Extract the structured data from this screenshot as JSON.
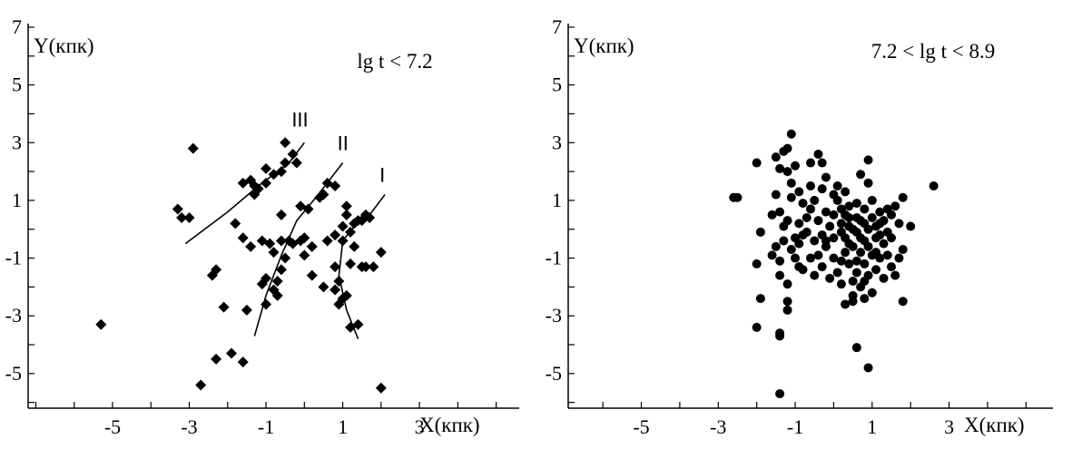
{
  "chart_data": [
    {
      "type": "scatter",
      "ylabel": "Y(кпк)",
      "xlabel": "X(кпк)",
      "annotation": "lg t < 7.2",
      "xlim": [
        -7.2,
        5.6
      ],
      "ylim": [
        -6.2,
        7
      ],
      "x_ticks": [
        "-5",
        "-3",
        "-1",
        "1",
        "3"
      ],
      "x_tick_values": [
        -5,
        -3,
        -1,
        1,
        3
      ],
      "y_ticks": [
        "7",
        "5",
        "3",
        "1",
        "-1",
        "-3",
        "-5"
      ],
      "y_tick_values": [
        7,
        5,
        3,
        1,
        -1,
        -3,
        -5
      ],
      "marker": "diamond",
      "points": [
        [
          -5.3,
          -3.3
        ],
        [
          -2.9,
          2.8
        ],
        [
          -3.3,
          0.7
        ],
        [
          -3.2,
          0.4
        ],
        [
          -3.0,
          0.4
        ],
        [
          -2.3,
          -1.4
        ],
        [
          -2.4,
          -1.6
        ],
        [
          -2.1,
          -2.7
        ],
        [
          -2.7,
          -5.4
        ],
        [
          -2.3,
          -4.5
        ],
        [
          -1.9,
          -4.3
        ],
        [
          -1.6,
          -4.6
        ],
        [
          -1.5,
          -2.8
        ],
        [
          -1.8,
          0.2
        ],
        [
          -1.6,
          -0.3
        ],
        [
          -1.4,
          -0.6
        ],
        [
          -1.6,
          1.6
        ],
        [
          -1.4,
          1.7
        ],
        [
          -1.3,
          1.5
        ],
        [
          -1.3,
          1.2
        ],
        [
          -1.2,
          1.4
        ],
        [
          -1.0,
          1.6
        ],
        [
          -1.0,
          2.1
        ],
        [
          -0.8,
          1.9
        ],
        [
          -0.6,
          2.0
        ],
        [
          -0.5,
          2.3
        ],
        [
          -0.5,
          3.0
        ],
        [
          -0.3,
          2.6
        ],
        [
          -0.2,
          2.3
        ],
        [
          -1.1,
          -0.4
        ],
        [
          -0.9,
          -0.5
        ],
        [
          -0.8,
          -0.8
        ],
        [
          -0.6,
          0.5
        ],
        [
          -0.6,
          -0.4
        ],
        [
          -0.5,
          -1.0
        ],
        [
          -0.4,
          -0.4
        ],
        [
          -0.3,
          -0.5
        ],
        [
          -0.6,
          -1.4
        ],
        [
          -0.7,
          -1.8
        ],
        [
          -0.8,
          -2.1
        ],
        [
          -0.7,
          -2.3
        ],
        [
          -1.0,
          -1.7
        ],
        [
          -1.1,
          -1.9
        ],
        [
          -1.0,
          -2.6
        ],
        [
          -0.1,
          -0.4
        ],
        [
          0.0,
          -0.3
        ],
        [
          0.0,
          -0.9
        ],
        [
          0.2,
          -0.6
        ],
        [
          -0.1,
          0.8
        ],
        [
          0.1,
          0.7
        ],
        [
          0.4,
          1.1
        ],
        [
          0.5,
          1.2
        ],
        [
          0.6,
          1.6
        ],
        [
          0.8,
          1.5
        ],
        [
          0.2,
          -1.6
        ],
        [
          0.5,
          -2.0
        ],
        [
          0.6,
          -0.4
        ],
        [
          0.8,
          -1.3
        ],
        [
          0.9,
          -1.8
        ],
        [
          0.8,
          -2.1
        ],
        [
          1.0,
          -2.4
        ],
        [
          0.9,
          -2.6
        ],
        [
          1.2,
          -1.2
        ],
        [
          1.1,
          -2.3
        ],
        [
          0.8,
          -0.2
        ],
        [
          1.0,
          0.1
        ],
        [
          1.0,
          -0.4
        ],
        [
          1.2,
          -0.1
        ],
        [
          1.3,
          0.2
        ],
        [
          1.3,
          -0.6
        ],
        [
          1.4,
          0.3
        ],
        [
          1.5,
          0.3
        ],
        [
          1.6,
          0.5
        ],
        [
          1.7,
          0.4
        ],
        [
          1.1,
          0.5
        ],
        [
          1.1,
          0.8
        ],
        [
          1.5,
          -1.3
        ],
        [
          1.6,
          -1.3
        ],
        [
          1.8,
          -1.3
        ],
        [
          1.4,
          -3.3
        ],
        [
          1.2,
          -3.4
        ],
        [
          2.0,
          -0.8
        ],
        [
          2.0,
          -5.5
        ]
      ],
      "curves": [
        {
          "label": "III",
          "points": [
            [
              -3.1,
              -0.5
            ],
            [
              -2.0,
              0.6
            ],
            [
              -1.2,
              1.5
            ],
            [
              -0.4,
              2.3
            ],
            [
              0.0,
              3.0
            ]
          ]
        },
        {
          "label": "II",
          "points": [
            [
              -1.3,
              -3.7
            ],
            [
              -1.0,
              -2.3
            ],
            [
              -0.6,
              -0.9
            ],
            [
              -0.2,
              0.3
            ],
            [
              0.3,
              1.1
            ],
            [
              1.0,
              2.3
            ]
          ]
        },
        {
          "label": "I",
          "points": [
            [
              1.4,
              -3.8
            ],
            [
              1.1,
              -2.8
            ],
            [
              0.9,
              -1.6
            ],
            [
              1.0,
              -0.4
            ],
            [
              1.3,
              0.1
            ],
            [
              1.7,
              0.5
            ],
            [
              2.1,
              1.2
            ]
          ]
        }
      ]
    },
    {
      "type": "scatter",
      "ylabel": "Y(кпк)",
      "xlabel": "X(кпк)",
      "annotation": "7.2 < lg t < 8.9",
      "xlim": [
        -6.9,
        5.7
      ],
      "ylim": [
        -6.2,
        7
      ],
      "x_ticks": [
        "-5",
        "-3",
        "-1",
        "1",
        "3"
      ],
      "x_tick_values": [
        -5,
        -3,
        -1,
        1,
        3
      ],
      "y_ticks": [
        "7",
        "5",
        "3",
        "1",
        "-1",
        "-3",
        "-5"
      ],
      "y_tick_values": [
        7,
        5,
        3,
        1,
        -1,
        -3,
        -5
      ],
      "marker": "circle",
      "points": [
        [
          -2.6,
          1.1
        ],
        [
          -2.5,
          1.1
        ],
        [
          -2.0,
          2.3
        ],
        [
          -1.9,
          -0.1
        ],
        [
          -2.0,
          -1.2
        ],
        [
          -1.9,
          -2.4
        ],
        [
          -2.0,
          -3.4
        ],
        [
          -1.4,
          -3.6
        ],
        [
          -1.4,
          -3.7
        ],
        [
          -1.4,
          -5.7
        ],
        [
          -1.2,
          -2.5
        ],
        [
          -1.2,
          -2.8
        ],
        [
          -1.1,
          3.3
        ],
        [
          -1.3,
          2.7
        ],
        [
          -1.2,
          2.8
        ],
        [
          -1.5,
          2.5
        ],
        [
          -1.4,
          2.1
        ],
        [
          -1.2,
          2.0
        ],
        [
          -1.0,
          2.2
        ],
        [
          -1.1,
          1.6
        ],
        [
          -0.9,
          1.3
        ],
        [
          -0.6,
          1.5
        ],
        [
          -0.6,
          2.3
        ],
        [
          -0.4,
          2.6
        ],
        [
          -0.3,
          2.3
        ],
        [
          -0.2,
          1.8
        ],
        [
          0.1,
          1.5
        ],
        [
          0.3,
          1.3
        ],
        [
          -1.4,
          0.6
        ],
        [
          -1.3,
          0.1
        ],
        [
          -1.2,
          0.3
        ],
        [
          -1.5,
          -0.6
        ],
        [
          -1.4,
          -1.1
        ],
        [
          -1.3,
          -0.4
        ],
        [
          -1.1,
          -0.7
        ],
        [
          -1.0,
          -1.0
        ],
        [
          -0.9,
          -0.5
        ],
        [
          -1.4,
          -1.6
        ],
        [
          -1.2,
          -1.9
        ],
        [
          -0.9,
          -1.3
        ],
        [
          -0.8,
          -0.2
        ],
        [
          -0.7,
          0.4
        ],
        [
          -0.6,
          0.7
        ],
        [
          -0.5,
          1.0
        ],
        [
          -0.4,
          0.3
        ],
        [
          -0.3,
          -0.2
        ],
        [
          -0.2,
          -0.6
        ],
        [
          -0.1,
          0.1
        ],
        [
          0.0,
          0.5
        ],
        [
          0.1,
          1.0
        ],
        [
          0.2,
          0.7
        ],
        [
          0.2,
          0.2
        ],
        [
          0.3,
          -0.3
        ],
        [
          0.4,
          0.1
        ],
        [
          0.4,
          0.4
        ],
        [
          0.5,
          -0.6
        ],
        [
          0.6,
          0.9
        ],
        [
          0.6,
          -0.1
        ],
        [
          0.7,
          0.3
        ],
        [
          0.8,
          0.7
        ],
        [
          0.8,
          -0.4
        ],
        [
          0.9,
          0.0
        ],
        [
          1.0,
          0.4
        ],
        [
          1.0,
          -0.9
        ],
        [
          1.1,
          -0.3
        ],
        [
          1.2,
          0.2
        ],
        [
          1.2,
          0.6
        ],
        [
          1.3,
          -0.5
        ],
        [
          1.4,
          -0.1
        ],
        [
          1.5,
          0.5
        ],
        [
          1.6,
          0.8
        ],
        [
          1.7,
          0.2
        ],
        [
          1.8,
          1.1
        ],
        [
          1.8,
          -0.7
        ],
        [
          1.6,
          -1.6
        ],
        [
          1.8,
          -2.5
        ],
        [
          2.0,
          0.1
        ],
        [
          2.6,
          1.5
        ],
        [
          0.9,
          2.4
        ],
        [
          0.9,
          1.6
        ],
        [
          0.7,
          1.9
        ],
        [
          -0.8,
          -1.4
        ],
        [
          -0.6,
          -1.0
        ],
        [
          -0.5,
          -1.6
        ],
        [
          -0.4,
          -0.9
        ],
        [
          -0.3,
          -1.3
        ],
        [
          -0.2,
          -0.4
        ],
        [
          0.0,
          -1.0
        ],
        [
          0.1,
          -1.5
        ],
        [
          0.2,
          -1.1
        ],
        [
          0.3,
          -0.8
        ],
        [
          0.4,
          -1.2
        ],
        [
          0.5,
          -1.8
        ],
        [
          0.5,
          -2.3
        ],
        [
          0.6,
          -1.5
        ],
        [
          0.7,
          -0.8
        ],
        [
          0.7,
          -2.0
        ],
        [
          0.8,
          -1.2
        ],
        [
          0.9,
          -1.6
        ],
        [
          1.0,
          -2.2
        ],
        [
          1.1,
          -1.4
        ],
        [
          1.2,
          -1.0
        ],
        [
          1.3,
          -1.7
        ],
        [
          0.3,
          -2.6
        ],
        [
          0.5,
          -2.5
        ],
        [
          0.8,
          -2.4
        ],
        [
          0.6,
          -4.1
        ],
        [
          0.9,
          -4.8
        ],
        [
          -1.6,
          0.5
        ],
        [
          -1.6,
          -0.9
        ],
        [
          -0.8,
          0.9
        ],
        [
          -0.5,
          -0.4
        ],
        [
          0.0,
          1.2
        ],
        [
          0.2,
          -0.1
        ],
        [
          0.4,
          0.8
        ],
        [
          0.6,
          0.4
        ],
        [
          0.8,
          0.2
        ],
        [
          1.0,
          1.0
        ],
        [
          1.1,
          0.1
        ],
        [
          1.3,
          0.3
        ],
        [
          1.4,
          -0.9
        ],
        [
          1.5,
          -1.3
        ],
        [
          -0.7,
          -0.1
        ],
        [
          -0.2,
          0.6
        ],
        [
          0.0,
          -0.3
        ],
        [
          0.3,
          0.5
        ],
        [
          0.5,
          0.0
        ],
        [
          0.7,
          -0.3
        ],
        [
          0.9,
          -0.6
        ],
        [
          1.1,
          -0.8
        ],
        [
          1.2,
          -0.2
        ],
        [
          0.6,
          -1.1
        ],
        [
          0.4,
          -0.5
        ],
        [
          -0.9,
          0.2
        ],
        [
          -1.0,
          -0.3
        ],
        [
          0.2,
          -1.9
        ],
        [
          1.4,
          0.7
        ],
        [
          -0.3,
          1.4
        ],
        [
          -0.1,
          -1.7
        ],
        [
          1.5,
          -0.3
        ],
        [
          1.7,
          -1.0
        ],
        [
          -1.5,
          1.2
        ],
        [
          -1.1,
          1.1
        ],
        [
          0.8,
          -1.8
        ]
      ]
    }
  ]
}
